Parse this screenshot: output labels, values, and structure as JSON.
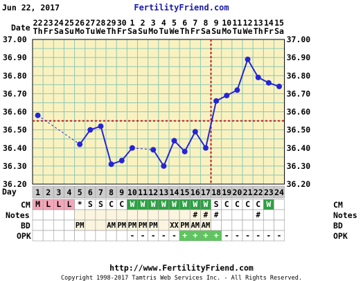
{
  "header": {
    "date": "Jun 22, 2017",
    "brand": "FertilityFriend.com"
  },
  "footer": {
    "url": "http://www.FertilityFriend.com",
    "copyright": "Copyright 1998-2017 Tamtris Web Services Inc. - All Rights Reserved."
  },
  "row_labels": {
    "date": "Date",
    "day": "Day",
    "cm": "CM",
    "notes": "Notes",
    "bd": "BD",
    "opk": "OPK"
  },
  "colors": {
    "background": "#F9F2C0",
    "grid": "#8CC7B5",
    "line": "#2424D8",
    "coverline": "#D01010",
    "menses": "#F4A7B9",
    "cm_wet": "#2EA043",
    "opk_pos": "#5CC85C",
    "day_row": "#CCCCCC"
  },
  "chart_data": {
    "type": "line",
    "dates": [
      "22",
      "23",
      "24",
      "25",
      "26",
      "27",
      "28",
      "29",
      "30",
      "1",
      "2",
      "3",
      "4",
      "5",
      "6",
      "7",
      "8",
      "9",
      "10",
      "11",
      "12",
      "13",
      "14",
      "15"
    ],
    "weekdays": [
      "Th",
      "Fr",
      "Sa",
      "Su",
      "Mo",
      "Tu",
      "We",
      "Th",
      "Fr",
      "Sa",
      "Su",
      "Mo",
      "Tu",
      "We",
      "Th",
      "Fr",
      "Sa",
      "Su",
      "Mo",
      "Tu",
      "We",
      "Th",
      "Fr",
      "Sa"
    ],
    "days": [
      1,
      2,
      3,
      4,
      5,
      6,
      7,
      8,
      9,
      10,
      11,
      12,
      13,
      14,
      15,
      16,
      17,
      18,
      19,
      20,
      21,
      22,
      23,
      24
    ],
    "temps": [
      36.58,
      null,
      null,
      null,
      36.42,
      36.5,
      36.52,
      36.31,
      36.33,
      36.4,
      null,
      36.39,
      36.3,
      36.44,
      36.38,
      36.49,
      36.4,
      36.66,
      36.69,
      36.72,
      36.89,
      36.79,
      36.76,
      36.74
    ],
    "ylim": [
      36.2,
      37.0
    ],
    "yticks": [
      "36.20",
      "36.30",
      "36.40",
      "36.50",
      "36.60",
      "36.70",
      "36.80",
      "36.90",
      "37.00"
    ],
    "coverline": 36.55,
    "ovulation_day": 17,
    "cm": [
      "M",
      "L",
      "L",
      "L",
      "*",
      "S",
      "S",
      "C",
      "C",
      "W",
      "W",
      "W",
      "W",
      "W",
      "W",
      "W",
      "W",
      "S",
      "C",
      "C",
      "C",
      "C",
      "W",
      ""
    ],
    "notes": [
      "",
      "",
      "",
      "",
      "",
      "",
      "",
      "",
      "",
      "",
      "",
      "",
      "",
      "",
      "",
      "#",
      "#",
      "#",
      "",
      "",
      "",
      "#",
      "",
      ""
    ],
    "bd": [
      "",
      "",
      "",
      "",
      "PM",
      "",
      "",
      "AM",
      "PM",
      "PM",
      "PM",
      "PM",
      "",
      "XX",
      "PM",
      "AM",
      "AM",
      "",
      "",
      "",
      "",
      "",
      "",
      ""
    ],
    "opk": [
      "",
      "",
      "",
      "",
      "",
      "",
      "",
      "",
      "",
      "-",
      "-",
      "-",
      "-",
      "-",
      "+",
      "+",
      "+",
      "+",
      "-",
      "-",
      "-",
      "-",
      "-",
      "-"
    ]
  }
}
